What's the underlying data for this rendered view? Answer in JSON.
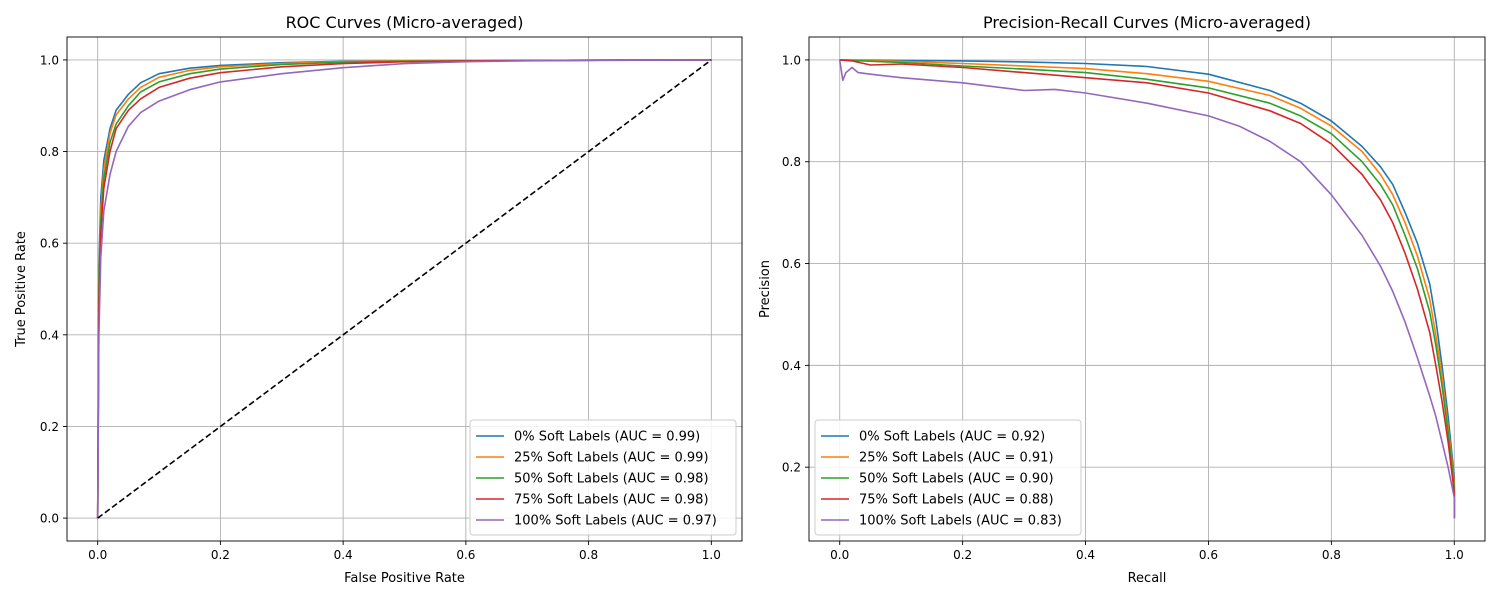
{
  "chart_data": [
    {
      "type": "line",
      "title": "ROC Curves (Micro-averaged)",
      "xlabel": "False Positive Rate",
      "ylabel": "True Positive Rate",
      "xlim": [
        -0.05,
        1.05
      ],
      "ylim": [
        -0.05,
        1.05
      ],
      "xticks": [
        0.0,
        0.2,
        0.4,
        0.6,
        0.8,
        1.0
      ],
      "yticks": [
        0.0,
        0.2,
        0.4,
        0.6,
        0.8,
        1.0
      ],
      "xtick_labels": [
        "0.0",
        "0.2",
        "0.4",
        "0.6",
        "0.8",
        "1.0"
      ],
      "ytick_labels": [
        "0.0",
        "0.2",
        "0.4",
        "0.6",
        "0.8",
        "1.0"
      ],
      "grid": true,
      "legend_position": "lower-right",
      "series": [
        {
          "name": "0% Soft Labels (AUC = 0.99)",
          "color": "#1f77b4",
          "x": [
            0,
            0.002,
            0.005,
            0.01,
            0.02,
            0.03,
            0.05,
            0.07,
            0.1,
            0.15,
            0.2,
            0.3,
            0.4,
            0.5,
            0.7,
            1.0
          ],
          "y": [
            0,
            0.55,
            0.7,
            0.78,
            0.85,
            0.89,
            0.925,
            0.95,
            0.97,
            0.982,
            0.988,
            0.994,
            0.997,
            0.998,
            0.999,
            1.0
          ]
        },
        {
          "name": "25% Soft Labels (AUC = 0.99)",
          "color": "#ff7f0e",
          "x": [
            0,
            0.002,
            0.005,
            0.01,
            0.02,
            0.03,
            0.05,
            0.07,
            0.1,
            0.15,
            0.2,
            0.3,
            0.4,
            0.5,
            0.7,
            1.0
          ],
          "y": [
            0,
            0.52,
            0.67,
            0.76,
            0.84,
            0.88,
            0.915,
            0.94,
            0.962,
            0.977,
            0.985,
            0.992,
            0.996,
            0.998,
            0.999,
            1.0
          ]
        },
        {
          "name": "50% Soft Labels (AUC = 0.98)",
          "color": "#2ca02c",
          "x": [
            0,
            0.002,
            0.005,
            0.01,
            0.02,
            0.03,
            0.05,
            0.07,
            0.1,
            0.15,
            0.2,
            0.3,
            0.4,
            0.5,
            0.7,
            1.0
          ],
          "y": [
            0,
            0.5,
            0.65,
            0.74,
            0.82,
            0.86,
            0.9,
            0.93,
            0.952,
            0.97,
            0.98,
            0.99,
            0.995,
            0.997,
            0.999,
            1.0
          ]
        },
        {
          "name": "75% Soft Labels (AUC = 0.98)",
          "color": "#d62728",
          "x": [
            0,
            0.002,
            0.005,
            0.01,
            0.02,
            0.03,
            0.05,
            0.07,
            0.1,
            0.15,
            0.2,
            0.3,
            0.4,
            0.5,
            0.7,
            1.0
          ],
          "y": [
            0,
            0.46,
            0.62,
            0.72,
            0.8,
            0.85,
            0.89,
            0.915,
            0.94,
            0.96,
            0.972,
            0.985,
            0.992,
            0.996,
            0.999,
            1.0
          ]
        },
        {
          "name": "100% Soft Labels (AUC = 0.97)",
          "color": "#9467bd",
          "x": [
            0,
            0.002,
            0.005,
            0.01,
            0.02,
            0.03,
            0.05,
            0.07,
            0.1,
            0.15,
            0.2,
            0.3,
            0.4,
            0.5,
            0.6,
            0.7,
            0.8,
            1.0
          ],
          "y": [
            0,
            0.4,
            0.57,
            0.67,
            0.75,
            0.8,
            0.855,
            0.885,
            0.91,
            0.935,
            0.952,
            0.97,
            0.983,
            0.992,
            0.996,
            0.998,
            0.999,
            1.0
          ]
        },
        {
          "name": "",
          "color": "#000000",
          "dashed": true,
          "x": [
            0,
            1
          ],
          "y": [
            0,
            1
          ]
        }
      ]
    },
    {
      "type": "line",
      "title": "Precision-Recall Curves (Micro-averaged)",
      "xlabel": "Recall",
      "ylabel": "Precision",
      "xlim": [
        -0.05,
        1.05
      ],
      "ylim": [
        0.055,
        1.045
      ],
      "xticks": [
        0.0,
        0.2,
        0.4,
        0.6,
        0.8,
        1.0
      ],
      "yticks": [
        0.2,
        0.4,
        0.6,
        0.8,
        1.0
      ],
      "xtick_labels": [
        "0.0",
        "0.2",
        "0.4",
        "0.6",
        "0.8",
        "1.0"
      ],
      "ytick_labels": [
        "0.2",
        "0.4",
        "0.6",
        "0.8",
        "1.0"
      ],
      "grid": true,
      "legend_position": "lower-left",
      "series": [
        {
          "name": "0% Soft Labels (AUC = 0.92)",
          "color": "#1f77b4",
          "x": [
            0,
            0.1,
            0.2,
            0.3,
            0.4,
            0.5,
            0.6,
            0.7,
            0.75,
            0.8,
            0.85,
            0.88,
            0.9,
            0.92,
            0.94,
            0.96,
            0.97,
            0.98,
            0.99,
            1.0,
            1.0
          ],
          "y": [
            1.0,
            0.999,
            0.998,
            0.996,
            0.993,
            0.987,
            0.972,
            0.94,
            0.915,
            0.88,
            0.83,
            0.79,
            0.755,
            0.7,
            0.64,
            0.56,
            0.49,
            0.4,
            0.3,
            0.18,
            0.1
          ]
        },
        {
          "name": "25% Soft Labels (AUC = 0.91)",
          "color": "#ff7f0e",
          "x": [
            0,
            0.1,
            0.2,
            0.3,
            0.4,
            0.5,
            0.6,
            0.7,
            0.75,
            0.8,
            0.85,
            0.88,
            0.9,
            0.92,
            0.94,
            0.96,
            0.97,
            0.98,
            0.99,
            1.0,
            1.0
          ],
          "y": [
            1.0,
            0.997,
            0.993,
            0.988,
            0.983,
            0.973,
            0.958,
            0.93,
            0.905,
            0.87,
            0.82,
            0.775,
            0.735,
            0.68,
            0.615,
            0.53,
            0.46,
            0.38,
            0.28,
            0.17,
            0.1
          ]
        },
        {
          "name": "50% Soft Labels (AUC = 0.90)",
          "color": "#2ca02c",
          "x": [
            0,
            0.1,
            0.2,
            0.3,
            0.4,
            0.5,
            0.6,
            0.7,
            0.75,
            0.8,
            0.85,
            0.88,
            0.9,
            0.92,
            0.94,
            0.96,
            0.97,
            0.98,
            0.99,
            1.0,
            1.0
          ],
          "y": [
            1.0,
            0.995,
            0.988,
            0.982,
            0.975,
            0.962,
            0.945,
            0.915,
            0.89,
            0.855,
            0.8,
            0.755,
            0.715,
            0.655,
            0.59,
            0.505,
            0.44,
            0.36,
            0.27,
            0.16,
            0.1
          ]
        },
        {
          "name": "75% Soft Labels (AUC = 0.88)",
          "color": "#d62728",
          "x": [
            0,
            0.02,
            0.05,
            0.1,
            0.2,
            0.3,
            0.4,
            0.5,
            0.6,
            0.7,
            0.75,
            0.8,
            0.85,
            0.88,
            0.9,
            0.92,
            0.94,
            0.96,
            0.97,
            0.98,
            0.99,
            1.0,
            1.0
          ],
          "y": [
            1.0,
            0.998,
            0.99,
            0.992,
            0.985,
            0.975,
            0.965,
            0.955,
            0.935,
            0.9,
            0.875,
            0.835,
            0.775,
            0.725,
            0.68,
            0.62,
            0.55,
            0.465,
            0.4,
            0.33,
            0.25,
            0.15,
            0.1
          ]
        },
        {
          "name": "100% Soft Labels (AUC = 0.83)",
          "color": "#9467bd",
          "x": [
            0,
            0.005,
            0.01,
            0.02,
            0.03,
            0.05,
            0.1,
            0.2,
            0.3,
            0.35,
            0.4,
            0.5,
            0.6,
            0.65,
            0.7,
            0.75,
            0.8,
            0.85,
            0.88,
            0.9,
            0.92,
            0.94,
            0.96,
            0.97,
            0.98,
            0.99,
            1.0,
            1.0
          ],
          "y": [
            1.0,
            0.96,
            0.975,
            0.985,
            0.975,
            0.972,
            0.965,
            0.955,
            0.94,
            0.942,
            0.935,
            0.915,
            0.89,
            0.87,
            0.84,
            0.8,
            0.735,
            0.655,
            0.595,
            0.545,
            0.485,
            0.415,
            0.34,
            0.3,
            0.25,
            0.2,
            0.14,
            0.1
          ]
        }
      ]
    }
  ]
}
